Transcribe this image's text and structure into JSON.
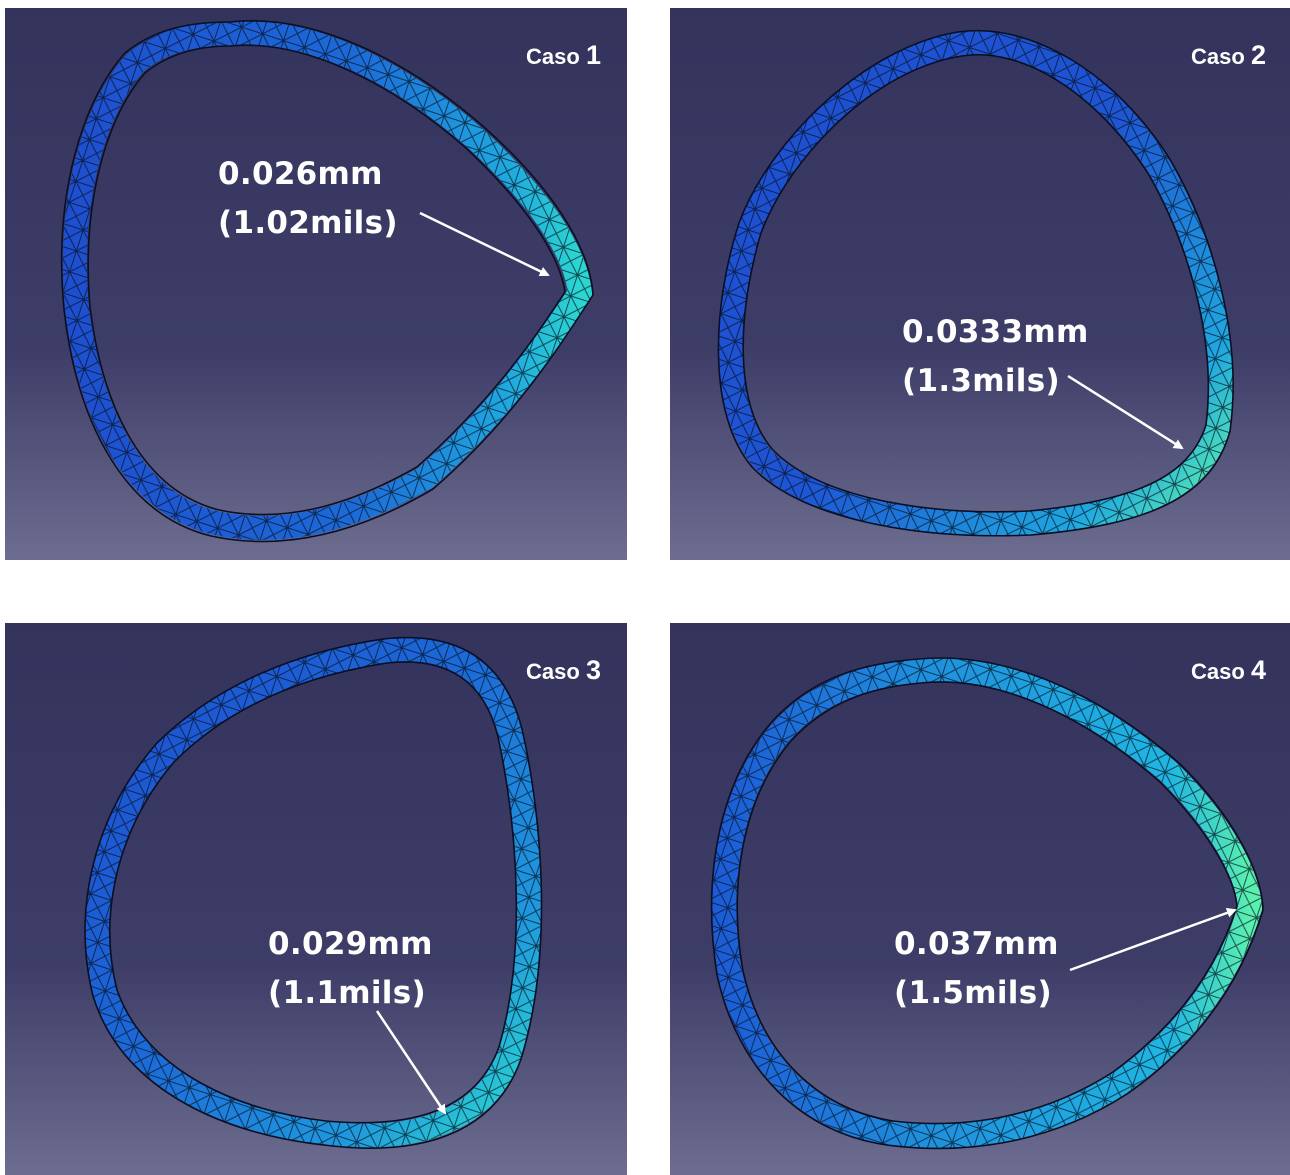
{
  "panels": [
    {
      "case_word": "Caso",
      "case_number": "1",
      "value_mm": "0.026mm",
      "value_mils": "(1.02mils)"
    },
    {
      "case_word": "Caso",
      "case_number": "2",
      "value_mm": "0.0333mm",
      "value_mils": "(1.3mils)"
    },
    {
      "case_word": "Caso",
      "case_number": "3",
      "value_mm": "0.029mm",
      "value_mils": "(1.1mils)"
    },
    {
      "case_word": "Caso",
      "case_number": "4",
      "value_mm": "0.037mm",
      "value_mils": "(1.5mils)"
    }
  ],
  "colors": {
    "background_top": "#33335c",
    "background_bottom": "#6a6a8e",
    "mesh_dark_blue": "#1e4fd0",
    "mesh_light_blue": "#1fa6e0",
    "mesh_cyan": "#2bd6d0",
    "mesh_green": "#5af0b0",
    "annotation_white": "#ffffff"
  }
}
